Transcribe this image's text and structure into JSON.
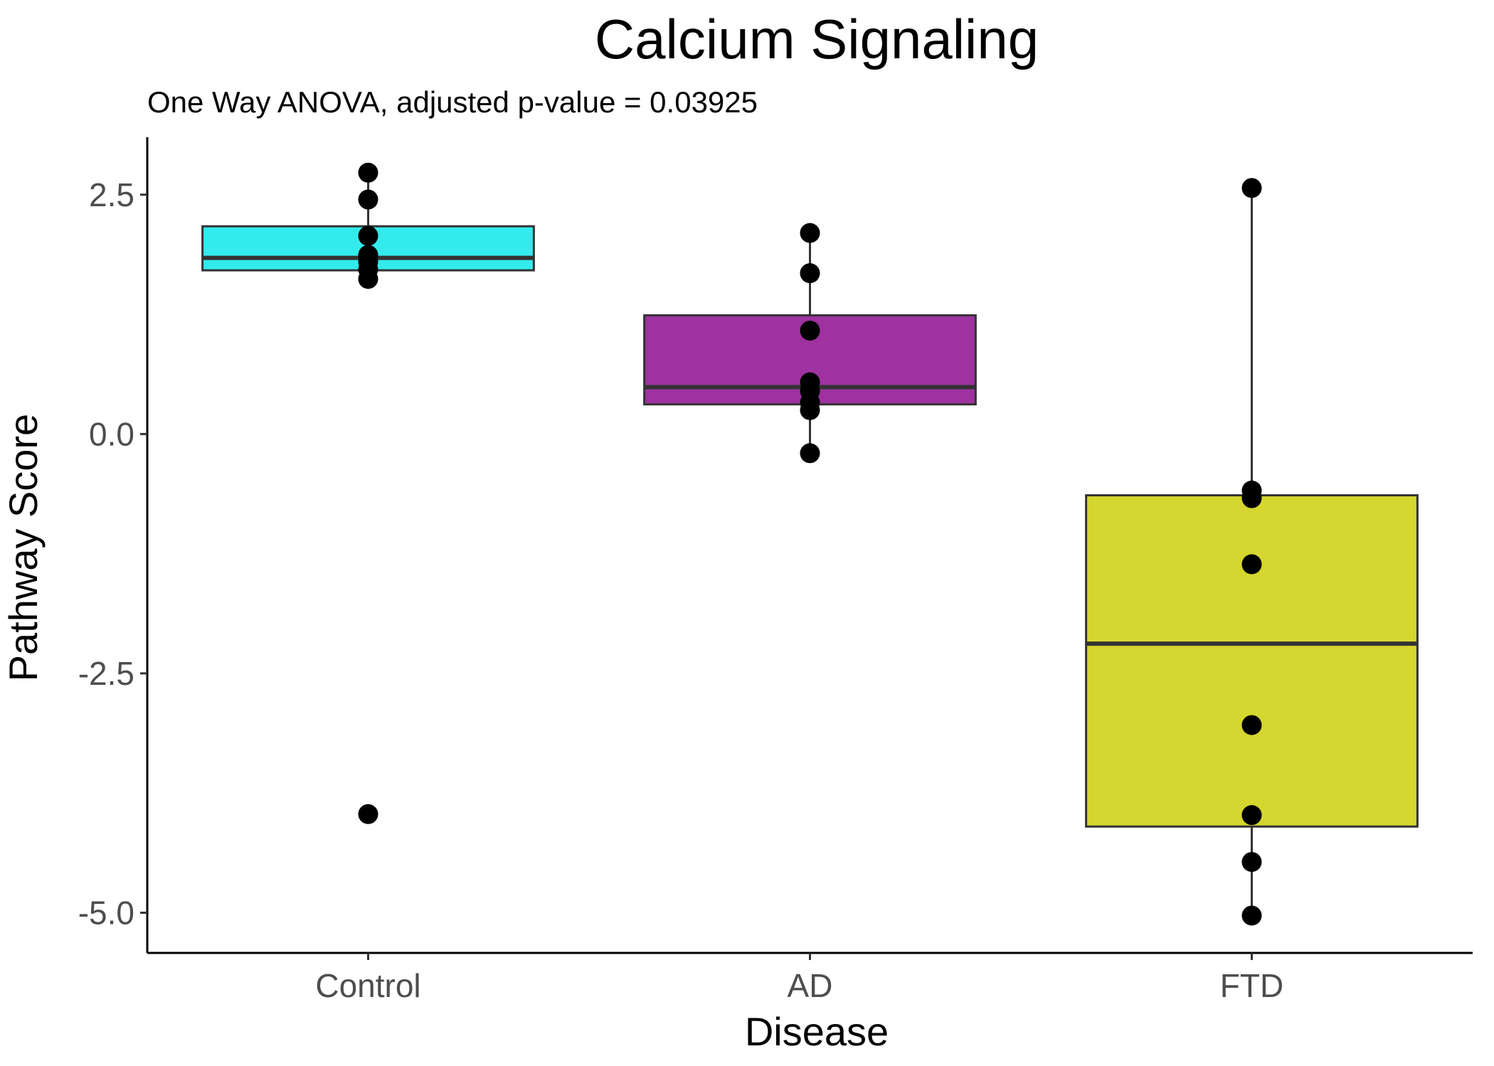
{
  "chart_data": {
    "type": "boxplot",
    "title": "Calcium Signaling",
    "subtitle": "One Way ANOVA, adjusted p-value = 0.03925",
    "xlabel": "Disease",
    "ylabel": "Pathway Score",
    "ylim": [
      -5.42,
      3.1
    ],
    "yticks": [
      2.5,
      0.0,
      -2.5,
      -5.0
    ],
    "ytick_labels": [
      "2.5",
      "0.0",
      "-2.5",
      "-5.0"
    ],
    "categories": [
      "Control",
      "AD",
      "FTD"
    ],
    "grid": false,
    "legend": "none",
    "groups": [
      {
        "name": "Control",
        "color": "#33ebed",
        "q1": 1.71,
        "median": 1.84,
        "q3": 2.17,
        "whisker_low": 1.62,
        "whisker_high": 2.73,
        "points": [
          2.73,
          2.45,
          2.07,
          1.87,
          1.8,
          1.72,
          1.62,
          -3.97
        ]
      },
      {
        "name": "AD",
        "color": "#9e32a0",
        "q1": 0.31,
        "median": 0.49,
        "q3": 1.24,
        "whisker_low": -0.2,
        "whisker_high": 2.1,
        "points": [
          2.1,
          1.68,
          1.08,
          0.54,
          0.45,
          0.33,
          0.25,
          -0.2
        ]
      },
      {
        "name": "FTD",
        "color": "#d6d630",
        "q1": -4.1,
        "median": -2.19,
        "q3": -0.64,
        "whisker_low": -5.03,
        "whisker_high": 2.57,
        "points": [
          2.57,
          -0.59,
          -0.67,
          -1.36,
          -3.04,
          -3.98,
          -4.47,
          -5.03
        ]
      }
    ]
  }
}
